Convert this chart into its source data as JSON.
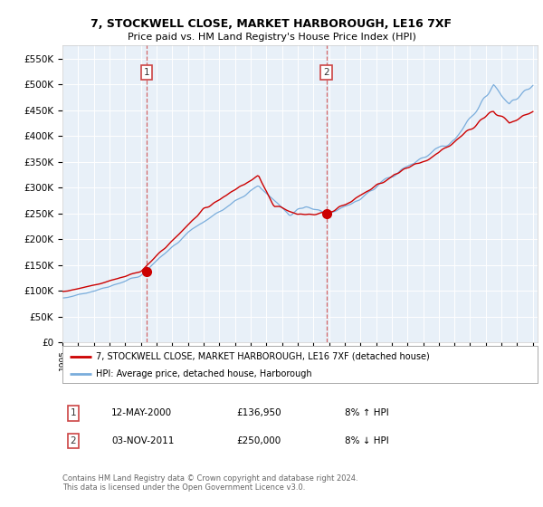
{
  "title1": "7, STOCKWELL CLOSE, MARKET HARBOROUGH, LE16 7XF",
  "title2": "Price paid vs. HM Land Registry's House Price Index (HPI)",
  "legend_line1": "7, STOCKWELL CLOSE, MARKET HARBOROUGH, LE16 7XF (detached house)",
  "legend_line2": "HPI: Average price, detached house, Harborough",
  "annotation1_date": "12-MAY-2000",
  "annotation1_price": "£136,950",
  "annotation1_hpi": "8% ↑ HPI",
  "annotation2_date": "03-NOV-2011",
  "annotation2_price": "£250,000",
  "annotation2_hpi": "8% ↓ HPI",
  "footer": "Contains HM Land Registry data © Crown copyright and database right 2024.\nThis data is licensed under the Open Government Licence v3.0.",
  "red_color": "#cc0000",
  "blue_color": "#7aaddc",
  "plot_bg": "#e8f0f8",
  "ylim_min": 0,
  "ylim_max": 575000,
  "transaction1_year": 2000.37,
  "transaction1_value": 136950,
  "transaction2_year": 2011.84,
  "transaction2_value": 250000
}
